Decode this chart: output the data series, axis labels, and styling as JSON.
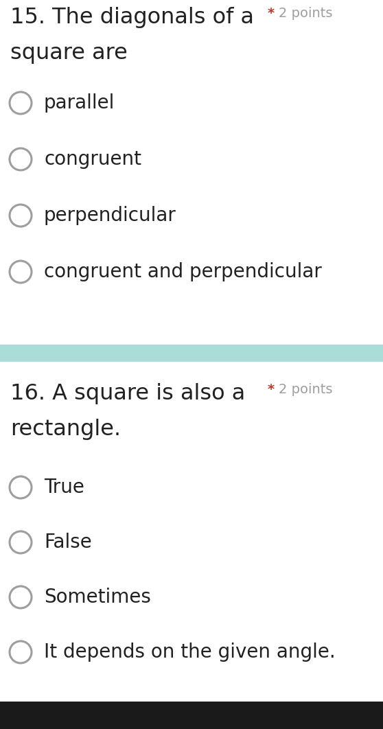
{
  "bg_color": "#ffffff",
  "divider_color": "#aaddd8",
  "q1_line1": "15. The diagonals of a",
  "q1_line2": "square are",
  "q1_options": [
    "parallel",
    "congruent",
    "perpendicular",
    "congruent and perpendicular"
  ],
  "q2_line1": "16. A square is also a",
  "q2_line2": "rectangle.",
  "q2_options": [
    "True",
    "False",
    "Sometimes",
    "It depends on the given angle."
  ],
  "text_color": "#212121",
  "points_gray": "#9e9e9e",
  "star_color": "#c0392b",
  "circle_edge_color": "#9e9e9e",
  "question_fontsize": 23,
  "option_fontsize": 20,
  "points_fontsize": 14,
  "fig_width": 5.58,
  "fig_height": 10.62,
  "dpi": 100
}
